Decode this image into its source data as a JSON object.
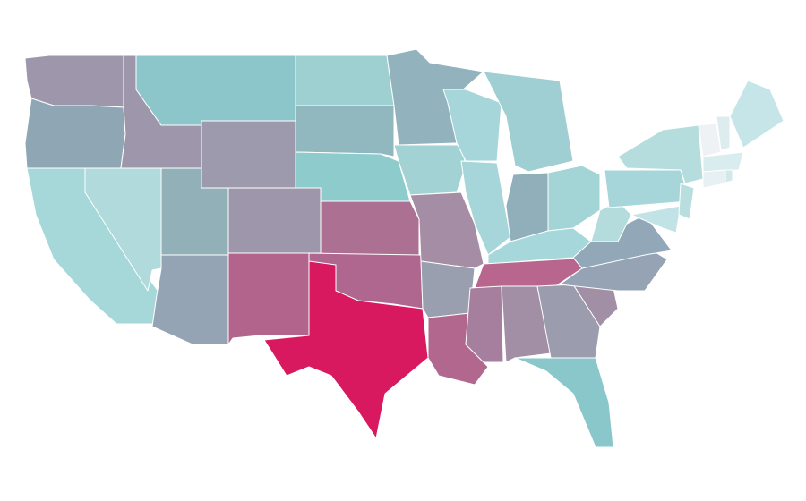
{
  "map": {
    "fills": [
      "#9e97ab",
      "#8fa6b5",
      "#a6d7d9",
      "#b0dadb",
      "#9e97ab",
      "#8cc6ca",
      "#9d9aae",
      "#91b0b8",
      "#95a4b5",
      "#9e97ab",
      "#b3648c",
      "#9ecfd1",
      "#92b8bf",
      "#8ecbcd",
      "#ac7093",
      "#b0678f",
      "#d8195f",
      "#92b3bd",
      "#a3d2d5",
      "#a58da5",
      "#9a9fb0",
      "#b2678e",
      "#a6d6d9",
      "#a6d6d9",
      "#9fcfd3",
      "#91afbb",
      "#a3d5d7",
      "#a6d7da",
      "#b8668d",
      "#a57f9d",
      "#a28fa5",
      "#9b9cae",
      "#8ac7ca",
      "#a08fa5",
      "#96a3b4",
      "#92a8b9",
      "#b4dcdc",
      "#a6d6d9",
      "#b6dddd",
      "#c2e3e5",
      "#b9dedf",
      "#eef2f4",
      "#dcecef",
      "#c6e5e8",
      "#d9edee",
      "#e7f1f4",
      "#d2e8ea"
    ]
  }
}
